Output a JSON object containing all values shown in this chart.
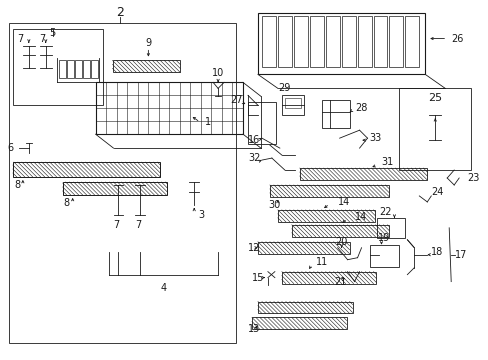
{
  "bg_color": "#ffffff",
  "lc": "#1a1a1a",
  "lw": 0.6,
  "fw": 489,
  "fh": 360,
  "dpi": 100,
  "figsize": [
    4.89,
    3.6
  ]
}
